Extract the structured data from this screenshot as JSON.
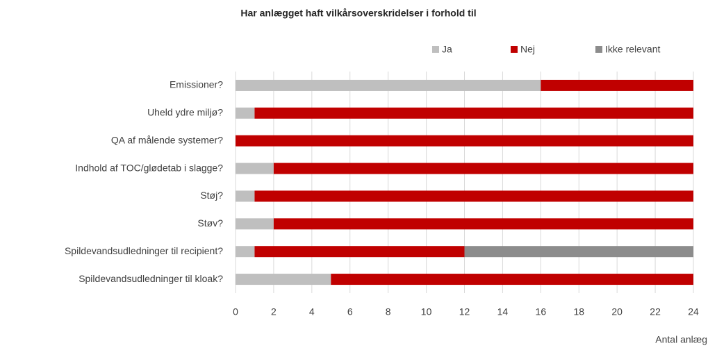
{
  "chart_data": {
    "type": "stacked_barh",
    "title": "Har anlægget haft vilkårsoverskridelser i forhold til",
    "x_label": "Antal anlæg",
    "categories": [
      "Emissioner?",
      "Uheld ydre miljø?",
      "QA af målende systemer?",
      "Indhold af TOC/glødetab i slagge?",
      "Støj?",
      "Støv?",
      "Spildevandsudledninger til recipient?",
      "Spildevandsudledninger til kloak?"
    ],
    "series": [
      {
        "name": "Ja",
        "color": "#bfbfbf",
        "values": [
          16,
          1,
          0,
          2,
          1,
          2,
          1,
          5
        ]
      },
      {
        "name": "Nej",
        "color": "#c00000",
        "values": [
          8,
          23,
          24,
          22,
          23,
          22,
          11,
          19
        ]
      },
      {
        "name": "Ikke relevant",
        "color": "#8c8c8c",
        "values": [
          0,
          0,
          0,
          0,
          0,
          0,
          12,
          0
        ]
      }
    ],
    "xlim": [
      0,
      24
    ],
    "xticks": [
      0,
      2,
      4,
      6,
      8,
      10,
      12,
      14,
      16,
      18,
      20,
      22,
      24
    ],
    "grid": true,
    "legend": "top"
  }
}
